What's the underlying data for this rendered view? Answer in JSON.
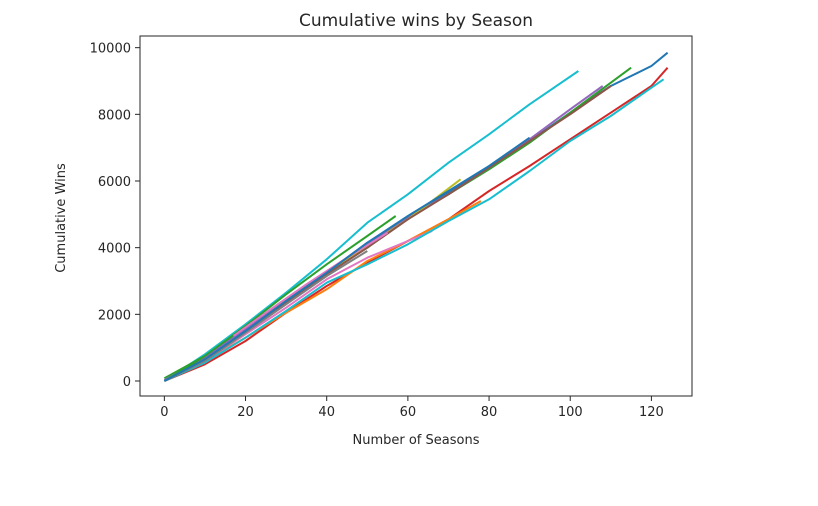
{
  "chart_data": {
    "type": "line",
    "title": "Cumulative wins by Season",
    "xlabel": "Number of Seasons",
    "ylabel": "Cumulative Wins",
    "xlim": [
      -6,
      130
    ],
    "ylim": [
      -450,
      10350
    ],
    "xticks": [
      0,
      20,
      40,
      60,
      80,
      100,
      120
    ],
    "yticks": [
      0,
      2000,
      4000,
      6000,
      8000,
      10000
    ],
    "grid": false,
    "legend": "none",
    "series": [
      {
        "color": "#17becf",
        "x": [
          0,
          10,
          20,
          30,
          40,
          50,
          60,
          70,
          80,
          90,
          102
        ],
        "y": [
          0,
          800,
          1700,
          2650,
          3650,
          4750,
          5600,
          6550,
          7400,
          8300,
          9300
        ]
      },
      {
        "color": "#1f77b4",
        "x": [
          0,
          10,
          20,
          30,
          40,
          50,
          60,
          70,
          80,
          90,
          100,
          110,
          115,
          120,
          124
        ],
        "y": [
          0,
          650,
          1450,
          2350,
          3250,
          4100,
          4900,
          5650,
          6400,
          7200,
          8050,
          8850,
          9150,
          9450,
          9850
        ]
      },
      {
        "color": "#2ca02c",
        "x": [
          0,
          10,
          20,
          30,
          40,
          50,
          60,
          70,
          80,
          90,
          100,
          110,
          115
        ],
        "y": [
          80,
          750,
          1550,
          2450,
          3250,
          4000,
          4900,
          5600,
          6350,
          7150,
          8050,
          8950,
          9400
        ]
      },
      {
        "color": "#d62728",
        "x": [
          0,
          10,
          20,
          30,
          40,
          50,
          60,
          70,
          80,
          90,
          100,
          110,
          120,
          124
        ],
        "y": [
          0,
          500,
          1200,
          2050,
          2850,
          3550,
          4200,
          4850,
          5700,
          6450,
          7250,
          8050,
          8850,
          9400
        ]
      },
      {
        "color": "#9467bd",
        "x": [
          0,
          10,
          20,
          30,
          40,
          50,
          60,
          70,
          80,
          90,
          100,
          108
        ],
        "y": [
          30,
          700,
          1550,
          2400,
          3250,
          4150,
          4900,
          5600,
          6400,
          7250,
          8150,
          8850
        ]
      },
      {
        "color": "#ff7f0e",
        "x": [
          0,
          10,
          20,
          30,
          40,
          50,
          60,
          70,
          78
        ],
        "y": [
          0,
          600,
          1300,
          2050,
          2750,
          3600,
          4200,
          4850,
          5400
        ]
      },
      {
        "color": "#bcbd22",
        "x": [
          0,
          10,
          20,
          30,
          40,
          50,
          60,
          73
        ],
        "y": [
          0,
          650,
          1450,
          2350,
          3200,
          4050,
          4850,
          6050
        ]
      },
      {
        "color": "#8c564b",
        "x": [
          0,
          10,
          20,
          30,
          40,
          50,
          60,
          70,
          80,
          90,
          100,
          110
        ],
        "y": [
          0,
          650,
          1450,
          2350,
          3200,
          4000,
          4850,
          5600,
          6400,
          7200,
          8000,
          8850
        ]
      },
      {
        "color": "#e377c2",
        "x": [
          0,
          10,
          20,
          30,
          40,
          50,
          60,
          66
        ],
        "y": [
          0,
          600,
          1400,
          2200,
          3050,
          3700,
          4200,
          4500
        ]
      },
      {
        "color": "#2ca02c",
        "x": [
          0,
          10,
          20,
          30,
          40,
          50,
          57
        ],
        "y": [
          0,
          750,
          1650,
          2600,
          3500,
          4350,
          4950
        ]
      },
      {
        "color": "#17becf",
        "x": [
          0,
          10,
          20,
          30,
          40,
          50,
          60,
          70,
          80,
          90,
          100,
          110,
          120,
          123
        ],
        "y": [
          0,
          550,
          1300,
          2100,
          2950,
          3500,
          4100,
          4800,
          5450,
          6300,
          7200,
          7950,
          8800,
          9050
        ]
      },
      {
        "color": "#7f7f7f",
        "x": [
          0,
          10,
          20,
          30,
          40,
          50
        ],
        "y": [
          0,
          600,
          1450,
          2300,
          3150,
          3900
        ]
      },
      {
        "color": "#e377c2",
        "x": [
          17,
          25,
          35,
          45,
          55
        ],
        "y": [
          1350,
          2050,
          2900,
          3700,
          4450
        ]
      },
      {
        "color": "#1f77b4",
        "x": [
          0,
          10,
          20,
          30,
          40,
          50,
          60,
          70,
          80,
          90
        ],
        "y": [
          0,
          650,
          1500,
          2400,
          3250,
          4150,
          4950,
          5700,
          6450,
          7300
        ]
      }
    ]
  }
}
